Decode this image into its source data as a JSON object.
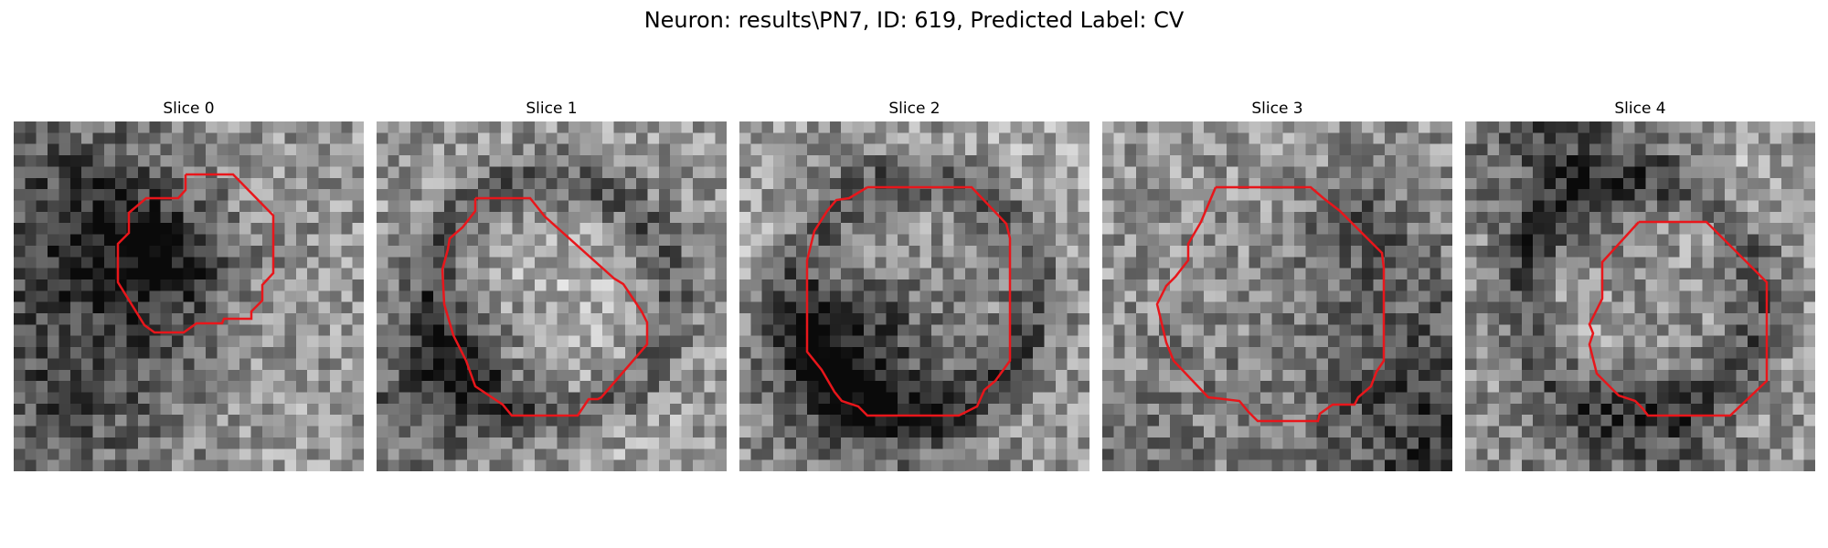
{
  "figure": {
    "title": "Neuron: results\\PN7, ID: 619, Predicted Label: CV"
  },
  "contour_color": "#e8161b",
  "panels": [
    {
      "title": "Slice 0",
      "seed": 11,
      "dark_core": true,
      "ring": false
    },
    {
      "title": "Slice 1",
      "seed": 23,
      "dark_core": false,
      "ring": true
    },
    {
      "title": "Slice 2",
      "seed": 37,
      "dark_core": false,
      "ring": true
    },
    {
      "title": "Slice 3",
      "seed": 41,
      "dark_core": false,
      "ring": false
    },
    {
      "title": "Slice 4",
      "seed": 59,
      "dark_core": false,
      "ring": true
    }
  ]
}
